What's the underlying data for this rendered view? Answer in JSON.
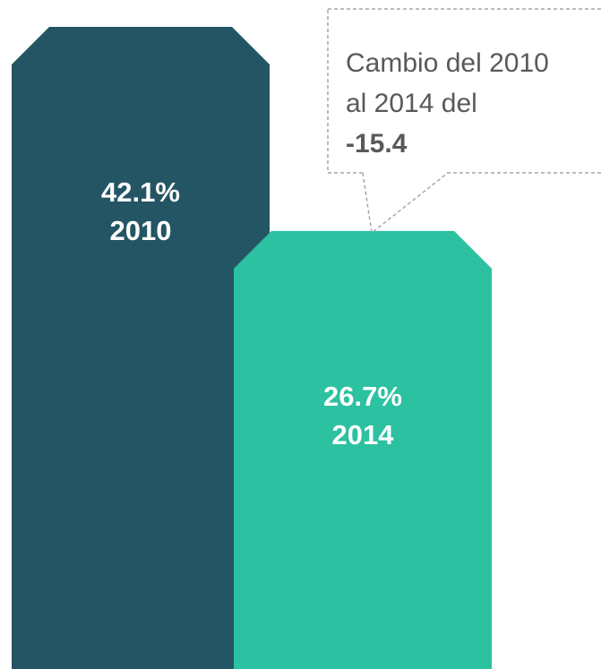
{
  "chart_data": {
    "type": "bar",
    "categories": [
      "2010",
      "2014"
    ],
    "values": [
      42.1,
      26.7
    ],
    "value_labels": [
      "42.1%",
      "26.7%"
    ],
    "colors": [
      "#245564",
      "#2bc1a1"
    ],
    "annotation": {
      "lines": [
        "Cambio del 2010",
        "al 2014 del"
      ],
      "value": "-15.4"
    }
  }
}
